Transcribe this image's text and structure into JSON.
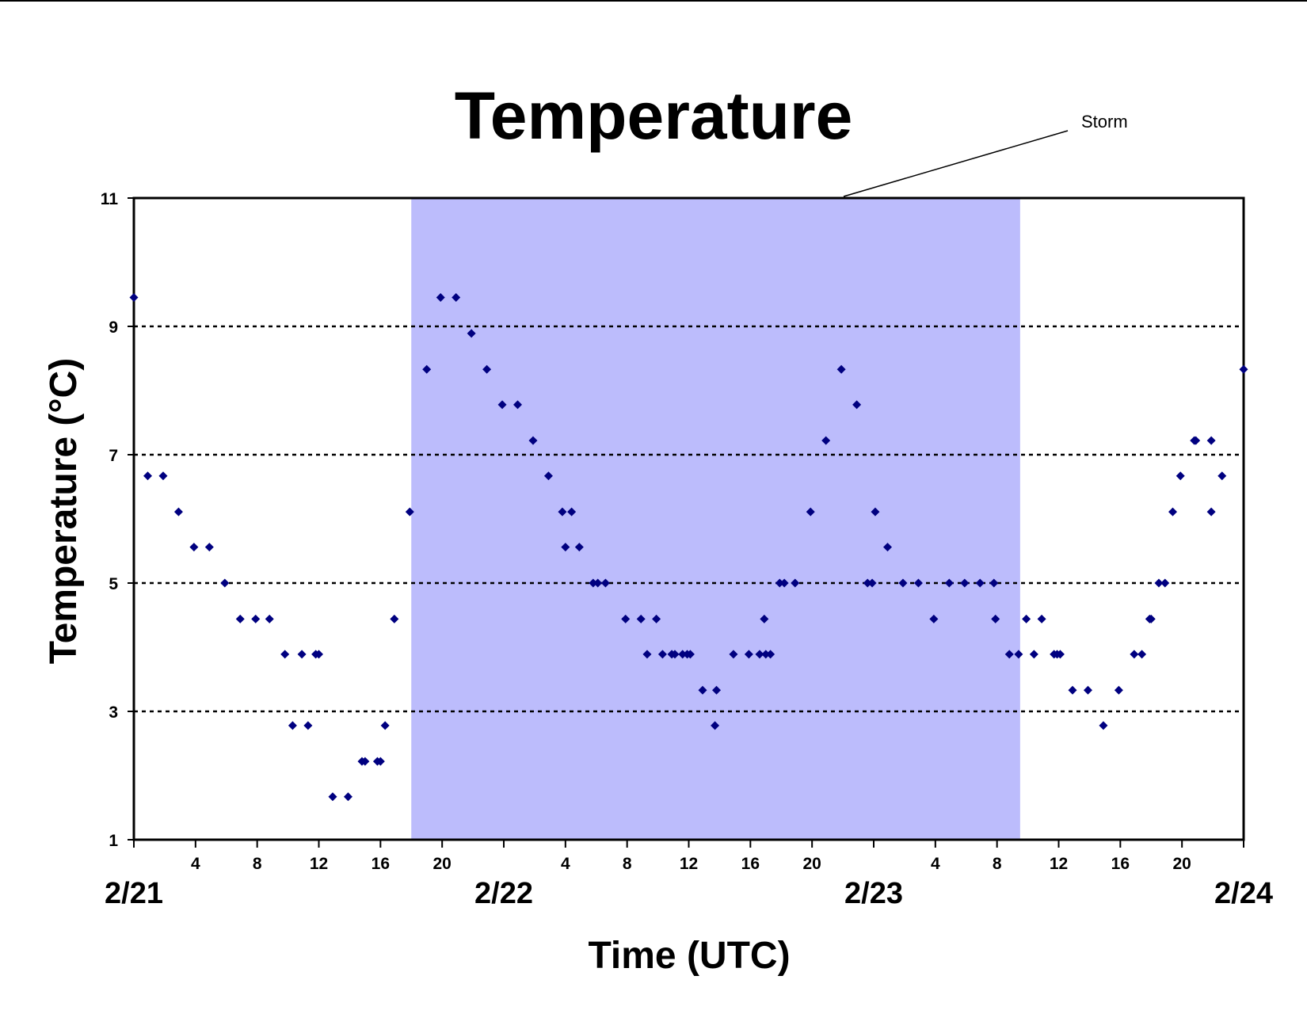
{
  "chart_data": {
    "type": "scatter",
    "title": "Temperature",
    "xlabel": "Time (UTC)",
    "ylabel": "Temperature (°C)",
    "x_unit": "hours after 2/21 00:00 UTC",
    "xlim": [
      0,
      72
    ],
    "ylim": [
      1,
      11
    ],
    "y_ticks": [
      1,
      3,
      5,
      7,
      9,
      11
    ],
    "x_ticks": [
      {
        "x": 0,
        "label": ""
      },
      {
        "x": 4,
        "label": "4"
      },
      {
        "x": 8,
        "label": "8"
      },
      {
        "x": 12,
        "label": "12"
      },
      {
        "x": 16,
        "label": "16"
      },
      {
        "x": 20,
        "label": "20"
      },
      {
        "x": 24,
        "label": ""
      },
      {
        "x": 28,
        "label": "4"
      },
      {
        "x": 32,
        "label": "8"
      },
      {
        "x": 36,
        "label": "12"
      },
      {
        "x": 40,
        "label": "16"
      },
      {
        "x": 44,
        "label": "20"
      },
      {
        "x": 48,
        "label": ""
      },
      {
        "x": 52,
        "label": "4"
      },
      {
        "x": 56,
        "label": "8"
      },
      {
        "x": 60,
        "label": "12"
      },
      {
        "x": 64,
        "label": "16"
      },
      {
        "x": 68,
        "label": "20"
      },
      {
        "x": 72,
        "label": ""
      }
    ],
    "date_labels": [
      {
        "x": 0,
        "label": "2/21"
      },
      {
        "x": 24,
        "label": "2/22"
      },
      {
        "x": 48,
        "label": "2/23"
      },
      {
        "x": 72,
        "label": "2/24"
      }
    ],
    "grid": "horizontal dotted",
    "shaded_region": {
      "x_start": 18,
      "x_end": 57.5,
      "label": "Storm",
      "color": "#bcbcfc"
    },
    "marker_color": "#000080",
    "series": [
      {
        "points": [
          [
            0,
            9.45
          ],
          [
            0.9,
            6.67
          ],
          [
            1.9,
            6.67
          ],
          [
            2.9,
            6.11
          ],
          [
            3.9,
            5.56
          ],
          [
            4.9,
            5.56
          ],
          [
            5.9,
            5.0
          ],
          [
            6.9,
            4.44
          ],
          [
            7.9,
            4.44
          ],
          [
            8.8,
            4.44
          ],
          [
            9.8,
            3.89
          ],
          [
            10.3,
            2.78
          ],
          [
            10.9,
            3.89
          ],
          [
            11.3,
            2.78
          ],
          [
            11.8,
            3.89
          ],
          [
            12.0,
            3.89
          ],
          [
            12.9,
            1.67
          ],
          [
            13.9,
            1.67
          ],
          [
            14.8,
            2.22
          ],
          [
            15.0,
            2.22
          ],
          [
            15.8,
            2.22
          ],
          [
            16.0,
            2.22
          ],
          [
            16.3,
            2.78
          ],
          [
            16.9,
            4.44
          ],
          [
            17.9,
            6.11
          ],
          [
            19.0,
            8.33
          ],
          [
            19.9,
            9.45
          ],
          [
            20.9,
            9.45
          ],
          [
            21.9,
            8.89
          ],
          [
            22.9,
            8.33
          ],
          [
            23.9,
            7.78
          ],
          [
            24.9,
            7.78
          ],
          [
            25.9,
            7.22
          ],
          [
            26.9,
            6.67
          ],
          [
            27.8,
            6.11
          ],
          [
            28.0,
            5.56
          ],
          [
            28.4,
            6.11
          ],
          [
            28.9,
            5.56
          ],
          [
            29.8,
            5.0
          ],
          [
            30.1,
            5.0
          ],
          [
            30.6,
            5.0
          ],
          [
            31.9,
            4.44
          ],
          [
            32.9,
            4.44
          ],
          [
            33.3,
            3.89
          ],
          [
            33.9,
            4.44
          ],
          [
            34.3,
            3.89
          ],
          [
            34.9,
            3.89
          ],
          [
            35.1,
            3.89
          ],
          [
            35.6,
            3.89
          ],
          [
            35.9,
            3.89
          ],
          [
            36.1,
            3.89
          ],
          [
            36.9,
            3.33
          ],
          [
            37.7,
            2.78
          ],
          [
            37.8,
            3.33
          ],
          [
            38.9,
            3.89
          ],
          [
            39.9,
            3.89
          ],
          [
            40.6,
            3.89
          ],
          [
            40.9,
            4.44
          ],
          [
            41.0,
            3.89
          ],
          [
            41.3,
            3.89
          ],
          [
            41.9,
            5.0
          ],
          [
            42.2,
            5.0
          ],
          [
            42.9,
            5.0
          ],
          [
            43.9,
            6.11
          ],
          [
            44.9,
            7.22
          ],
          [
            45.9,
            8.33
          ],
          [
            46.9,
            7.78
          ],
          [
            47.6,
            5.0
          ],
          [
            47.9,
            5.0
          ],
          [
            48.1,
            6.11
          ],
          [
            48.9,
            5.56
          ],
          [
            49.9,
            5.0
          ],
          [
            50.9,
            5.0
          ],
          [
            51.9,
            4.44
          ],
          [
            52.9,
            5.0
          ],
          [
            53.9,
            5.0
          ],
          [
            54.9,
            5.0
          ],
          [
            55.8,
            5.0
          ],
          [
            55.9,
            4.44
          ],
          [
            56.8,
            3.89
          ],
          [
            57.4,
            3.89
          ],
          [
            57.9,
            4.44
          ],
          [
            58.4,
            3.89
          ],
          [
            58.9,
            4.44
          ],
          [
            59.7,
            3.89
          ],
          [
            59.9,
            3.89
          ],
          [
            60.1,
            3.89
          ],
          [
            60.9,
            3.33
          ],
          [
            61.9,
            3.33
          ],
          [
            62.9,
            2.78
          ],
          [
            63.9,
            3.33
          ],
          [
            64.9,
            3.89
          ],
          [
            65.4,
            3.89
          ],
          [
            65.9,
            4.44
          ],
          [
            66.0,
            4.44
          ],
          [
            66.5,
            5.0
          ],
          [
            66.9,
            5.0
          ],
          [
            67.4,
            6.11
          ],
          [
            67.9,
            6.67
          ],
          [
            68.8,
            7.22
          ],
          [
            68.9,
            7.22
          ],
          [
            69.9,
            7.22
          ],
          [
            69.9,
            6.11
          ],
          [
            70.6,
            6.67
          ],
          [
            72.0,
            8.33
          ]
        ]
      }
    ]
  }
}
